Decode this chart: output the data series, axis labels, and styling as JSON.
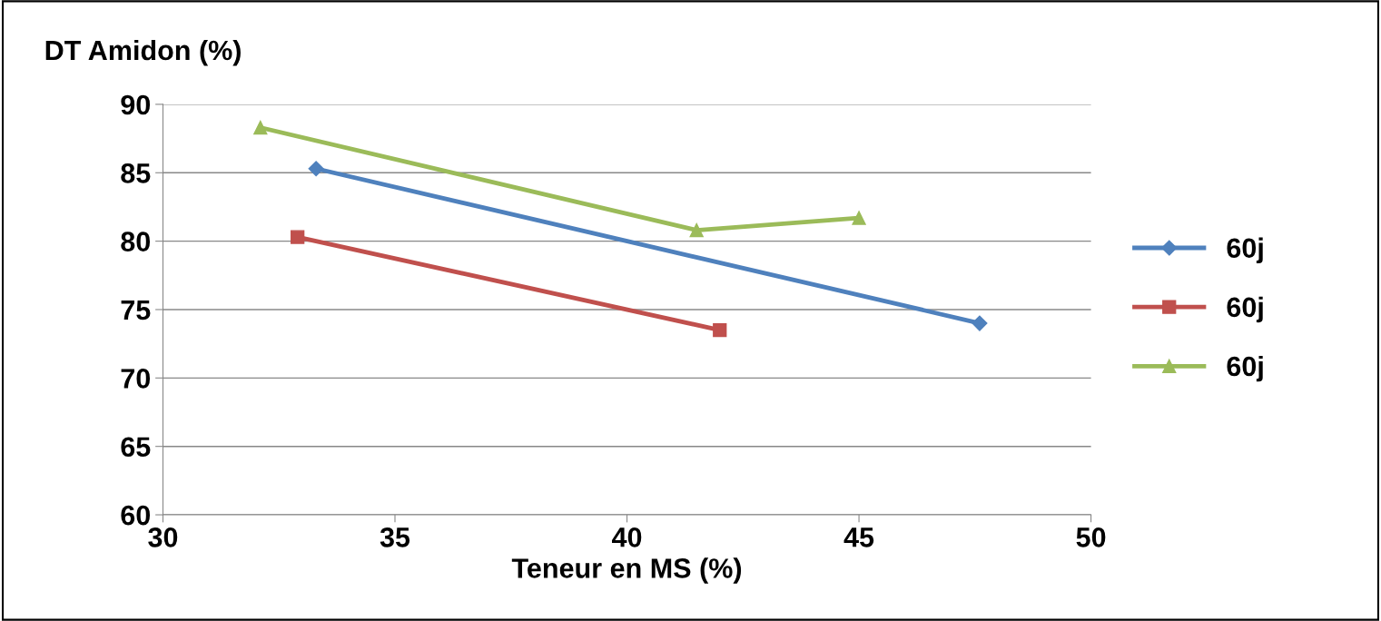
{
  "chart_data": {
    "type": "line",
    "xlabel": "Teneur en MS (%)",
    "ylabel": "DT Amidon (%)",
    "xlim": [
      30,
      50
    ],
    "xticks": [
      30,
      35,
      40,
      45,
      50
    ],
    "ylim": [
      60,
      90
    ],
    "yticks": [
      60,
      65,
      70,
      75,
      80,
      85,
      90
    ],
    "grid": "y",
    "legend": "right",
    "line_style": "solid",
    "series": [
      {
        "name": "60j",
        "color": "#4f81bd",
        "marker": "diamond",
        "x": [
          33.3,
          47.6
        ],
        "values": [
          85.3,
          74.0
        ]
      },
      {
        "name": "60j",
        "color": "#c0504d",
        "marker": "square",
        "x": [
          32.9,
          42.0
        ],
        "values": [
          80.3,
          73.5
        ]
      },
      {
        "name": "60j",
        "color": "#9bbb59",
        "marker": "triangle",
        "x": [
          32.1,
          41.5,
          45.0
        ],
        "values": [
          88.3,
          80.8,
          81.7
        ]
      }
    ]
  }
}
